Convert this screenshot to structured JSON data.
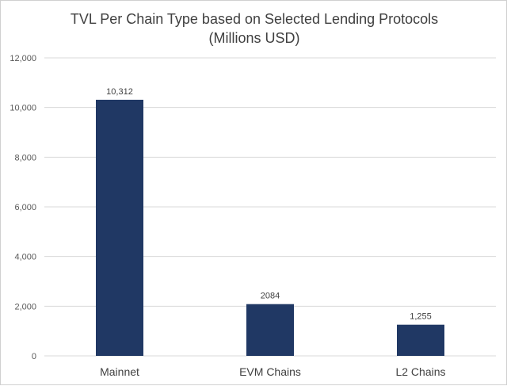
{
  "chart_data": {
    "type": "bar",
    "title": [
      "TVL Per Chain Type based on Selected Lending Protocols",
      "(Millions USD)"
    ],
    "categories": [
      "Mainnet",
      "EVM Chains",
      "L2 Chains"
    ],
    "values": [
      10312,
      2084,
      1255
    ],
    "data_labels": [
      "10,312",
      "2084",
      "1,255"
    ],
    "ylim": [
      0,
      12000
    ],
    "yticks": [
      0,
      2000,
      4000,
      6000,
      8000,
      10000,
      12000
    ],
    "ytick_labels": [
      "0",
      "2,000",
      "4,000",
      "6,000",
      "8,000",
      "10,000",
      "12,000"
    ],
    "xlabel": "",
    "ylabel": "",
    "grid": true,
    "legend": "none",
    "bar_color": "#203864"
  }
}
